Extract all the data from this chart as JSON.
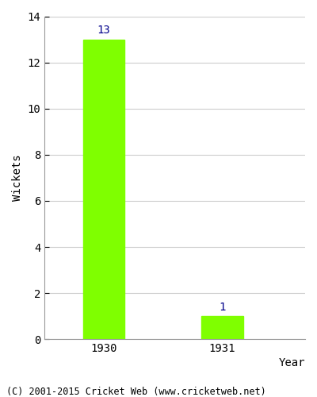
{
  "categories": [
    "1930",
    "1931"
  ],
  "values": [
    13,
    1
  ],
  "bar_color": "#7fff00",
  "label_color": "#00008b",
  "ylabel": "Wickets",
  "xlabel": "Year",
  "ylim": [
    0,
    14
  ],
  "yticks": [
    0,
    2,
    4,
    6,
    8,
    10,
    12,
    14
  ],
  "bar_width": 0.35,
  "background_color": "#ffffff",
  "grid_color": "#cccccc",
  "footer_text": "(C) 2001-2015 Cricket Web (www.cricketweb.net)",
  "footer_fontsize": 8.5,
  "label_fontsize": 10,
  "axis_fontsize": 10,
  "tick_fontsize": 10
}
